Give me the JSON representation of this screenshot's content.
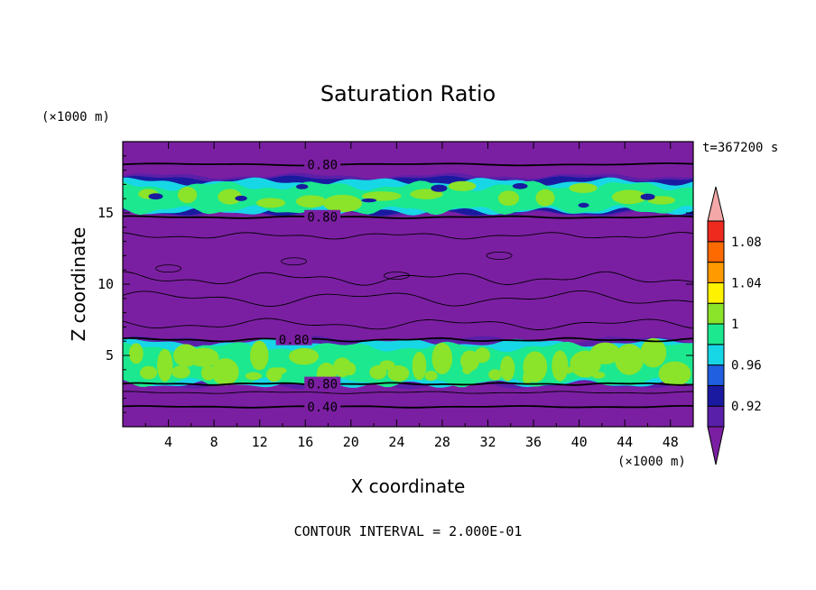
{
  "chart_data": {
    "type": "heatmap",
    "title": "Saturation Ratio",
    "xlabel": "X coordinate",
    "ylabel": "Z coordinate",
    "x_unit": "(×1000 m)",
    "y_unit": "(×1000 m)",
    "time_label": "t=367200 s",
    "footer": "CONTOUR INTERVAL = 2.000E-01",
    "xlim": [
      0,
      50
    ],
    "ylim": [
      0,
      20
    ],
    "x_ticks": [
      "4",
      "8",
      "12",
      "16",
      "20",
      "24",
      "28",
      "32",
      "36",
      "40",
      "44",
      "48"
    ],
    "y_ticks": [
      "5",
      "10",
      "15"
    ],
    "colorbar": {
      "levels": [
        0.9,
        0.92,
        0.94,
        0.96,
        0.98,
        1.0,
        1.02,
        1.04,
        1.06,
        1.08,
        1.1
      ],
      "labels": [
        "0.92",
        "0.96",
        "1",
        "1.04",
        "1.08"
      ],
      "colors": [
        "#7B1FA2",
        "#5A1FA8",
        "#1A1AA0",
        "#1F5FE0",
        "#17D6E6",
        "#1CE88F",
        "#8BE32A",
        "#FFF200",
        "#FF9A00",
        "#FF6A00",
        "#EE2A1F",
        "#F4A8A8"
      ]
    },
    "background_value": "< 0.90",
    "cloud_layers": [
      {
        "name": "upper",
        "z_range": [
          15.0,
          17.5
        ],
        "peak_value": 1.0
      },
      {
        "name": "lower",
        "z_range": [
          3.0,
          6.0
        ],
        "peak_value": 1.0
      }
    ],
    "contour_labels": [
      {
        "text": "0.80",
        "x": 17.5,
        "z": 18.4
      },
      {
        "text": "0.80",
        "x": 17.5,
        "z": 14.7
      },
      {
        "text": "0.80",
        "x": 15.0,
        "z": 6.1
      },
      {
        "text": "0.80",
        "x": 17.5,
        "z": 3.0
      },
      {
        "text": "0.40",
        "x": 17.5,
        "z": 1.4
      }
    ]
  }
}
